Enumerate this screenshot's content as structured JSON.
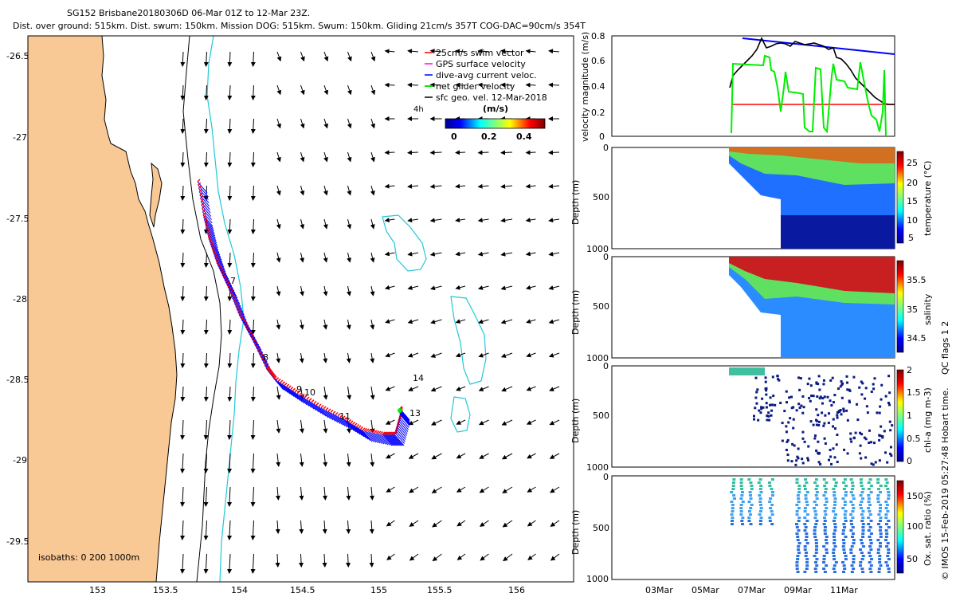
{
  "header": {
    "title_line1": "SG152 Brisbane20180306D 06-Mar 01Z to 12-Mar 23Z.",
    "title_line2": "Dist. over ground: 515km. Dist. swum: 150km. Mission DOG: 515km. Swum: 150km. Gliding 21cm/s 357T COG-DAC=90cm/s 354T"
  },
  "map": {
    "lat_ticks": [
      "-26.5",
      "-27",
      "-27.5",
      "-28",
      "-28.5",
      "-29",
      "-29.5"
    ],
    "lon_ticks": [
      "153",
      "153.5",
      "154",
      "154.5",
      "155",
      "155.5",
      "156"
    ],
    "legend": [
      {
        "label": "25cm/s swim vector",
        "color": "#ff0000"
      },
      {
        "label": "GPS surface velocity",
        "color": "#ff00ff"
      },
      {
        "label": "dive-avg current veloc.",
        "color": "#0000ff"
      },
      {
        "label": "net glider velocity",
        "color": "#00ee00"
      },
      {
        "label": "sfc geo. vel. 12-Mar-2018",
        "color": "#000000"
      }
    ],
    "legend_note": "4h",
    "colorbar_title": "(m/s)",
    "colorbar_ticks": [
      "0",
      "0.2",
      "0.4"
    ],
    "isobaths_label": "isobaths: 0   200  1000m",
    "track_labels": [
      "7",
      "8",
      "9",
      "10",
      "11",
      "13",
      "14"
    ],
    "colors": {
      "land": "#f9c995",
      "coast": "#000000",
      "isobath200": "#00cccc",
      "track": "#0000ff",
      "swim": "#ff0000"
    }
  },
  "panels": {
    "velocity": {
      "ylabel": "velocity magnitude (m/s)",
      "yticks": [
        "0",
        "0.2",
        "0.4",
        "0.6",
        "0.8"
      ]
    },
    "temperature": {
      "ylabel": "Depth (m)",
      "cbar_label": "temperature (°C)",
      "yticks": [
        "0",
        "500",
        "1000"
      ],
      "cbar_ticks": [
        "25",
        "20",
        "15",
        "10",
        "5"
      ]
    },
    "salinity": {
      "ylabel": "Depth (m)",
      "cbar_label": "salinity",
      "yticks": [
        "0",
        "500",
        "1000"
      ],
      "cbar_ticks": [
        "35.5",
        "35",
        "34.5"
      ]
    },
    "chla": {
      "ylabel": "Depth (m)",
      "cbar_label": "chl-a (mg m-3)",
      "yticks": [
        "0",
        "500",
        "1000"
      ],
      "cbar_ticks": [
        "2",
        "1.5",
        "1",
        "0.5",
        "0"
      ]
    },
    "oxygen": {
      "ylabel": "Depth (m)",
      "cbar_label": "Ox. sat. ratio (%)",
      "yticks": [
        "0",
        "500",
        "1000"
      ],
      "cbar_ticks": [
        "150",
        "100",
        "50"
      ]
    },
    "side_label": "QC flags 1  2",
    "footer": "© IMOS 15-Feb-2019 05:27:48 Hobart time.",
    "xticks": [
      "03Mar",
      "05Mar",
      "07Mar",
      "09Mar",
      "11Mar"
    ]
  }
}
